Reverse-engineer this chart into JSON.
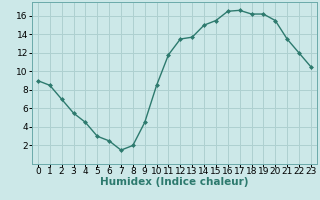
{
  "x": [
    0,
    1,
    2,
    3,
    4,
    5,
    6,
    7,
    8,
    9,
    10,
    11,
    12,
    13,
    14,
    15,
    16,
    17,
    18,
    19,
    20,
    21,
    22,
    23
  ],
  "y": [
    9.0,
    8.5,
    7.0,
    5.5,
    4.5,
    3.0,
    2.5,
    1.5,
    2.0,
    4.5,
    8.5,
    11.8,
    13.5,
    13.7,
    15.0,
    15.5,
    16.5,
    16.6,
    16.2,
    16.2,
    15.5,
    13.5,
    12.0,
    10.5
  ],
  "line_color": "#2d7a6e",
  "marker": "D",
  "marker_size": 2.0,
  "bg_color": "#cce8e8",
  "grid_color": "#aed0d0",
  "xlabel": "Humidex (Indice chaleur)",
  "xlim": [
    -0.5,
    23.5
  ],
  "ylim": [
    0,
    17.5
  ],
  "yticks": [
    2,
    4,
    6,
    8,
    10,
    12,
    14,
    16
  ],
  "xticks": [
    0,
    1,
    2,
    3,
    4,
    5,
    6,
    7,
    8,
    9,
    10,
    11,
    12,
    13,
    14,
    15,
    16,
    17,
    18,
    19,
    20,
    21,
    22,
    23
  ],
  "label_fontsize": 7.5,
  "tick_fontsize": 6.5
}
